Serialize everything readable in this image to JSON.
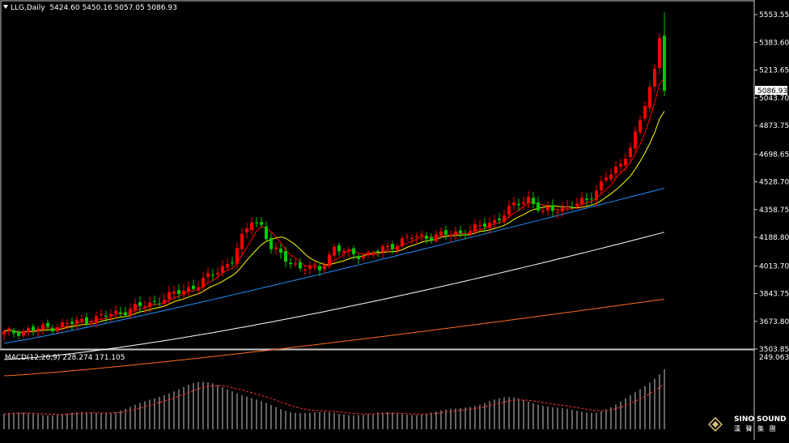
{
  "header": {
    "symbol": "LLG,Daily",
    "ohlc": "5424.60 5450.16 5057.05 5086.93"
  },
  "macd": {
    "label": "MACD(12,26,9) 228.274 171.105"
  },
  "logo": {
    "line1": "SINO SOUND",
    "line2": "漢 聲 集 團"
  },
  "colors": {
    "background": "#000000",
    "grid": "#c8c8c8",
    "text": "#ffffff",
    "bull": "#ff0000",
    "bear": "#00c800",
    "ma_fast": "#ff0000",
    "ma_mid": "#ffff00",
    "ma_slow": "#1e90ff",
    "ma_long": "#ffffff",
    "ma_longest": "#ff6a1a",
    "macd_hist": "#c8c8c8",
    "macd_signal": "#ff3030"
  },
  "chart_data": {
    "type": "candlestick",
    "instrument": "LLG",
    "timeframe": "Daily",
    "y_ticks": [
      "5553.55",
      "5383.60",
      "5213.65",
      "5043.70",
      "4873.75",
      "4698.65",
      "4528.70",
      "4358.75",
      "4188.80",
      "4013.70",
      "3843.75",
      "3673.80",
      "3503.85"
    ],
    "ylim": [
      3503.85,
      5680
    ],
    "last_price_label": "5086.93",
    "macd_y_tick": "249.063",
    "macd_params": [
      12,
      26,
      9
    ],
    "macd_value": 228.274,
    "macd_signal_value": 171.105
  }
}
